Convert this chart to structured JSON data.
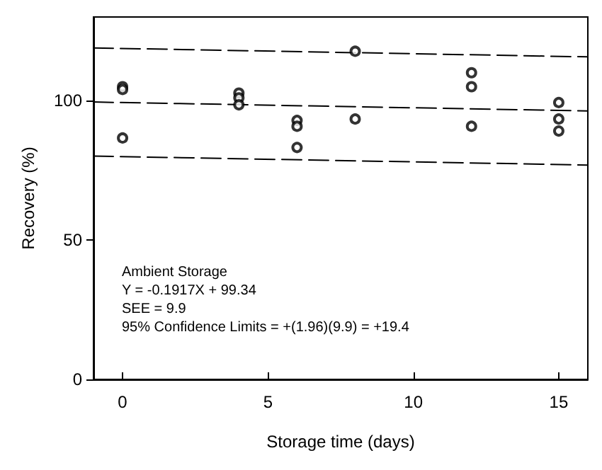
{
  "chart_data": {
    "type": "scatter",
    "xlabel": "Storage time (days)",
    "ylabel": "Recovery (%)",
    "xlim": [
      -1,
      16
    ],
    "xticks": [
      0,
      5,
      10,
      15
    ],
    "ylim": [
      0,
      130
    ],
    "yticks": [
      0,
      50,
      100
    ],
    "grid": false,
    "marker": "circle",
    "series": [
      {
        "color": "#000000",
        "x": [
          0,
          0,
          0,
          4,
          4,
          4,
          6,
          6,
          6,
          8,
          8,
          12,
          12,
          12,
          15,
          15,
          15
        ],
        "values": [
          105,
          104,
          86.6,
          102.7,
          101,
          98.5,
          92.9,
          90.8,
          83.2,
          117.7,
          93.4,
          110,
          105,
          90.8,
          99.3,
          93.4,
          89.1
        ]
      },
      {
        "type": "line",
        "color": "#000000",
        "line_style": "dashed",
        "marker": "none",
        "x": [
          -1,
          16
        ],
        "values": [
          99.5,
          96.3
        ]
      },
      {
        "type": "line",
        "color": "#000000",
        "line_style": "dashed",
        "marker": "none",
        "x": [
          -1,
          16
        ],
        "values": [
          118.9,
          115.7
        ]
      },
      {
        "type": "line",
        "color": "#000000",
        "line_style": "dashed",
        "marker": "none",
        "x": [
          -1,
          16
        ],
        "values": [
          80.1,
          76.9
        ]
      }
    ],
    "annotations": [
      "Ambient Storage",
      "Y = -0.1917X + 99.34",
      "SEE = 9.9",
      "95% Confidence Limits = +(1.96)(9.9) = +19.4"
    ]
  }
}
